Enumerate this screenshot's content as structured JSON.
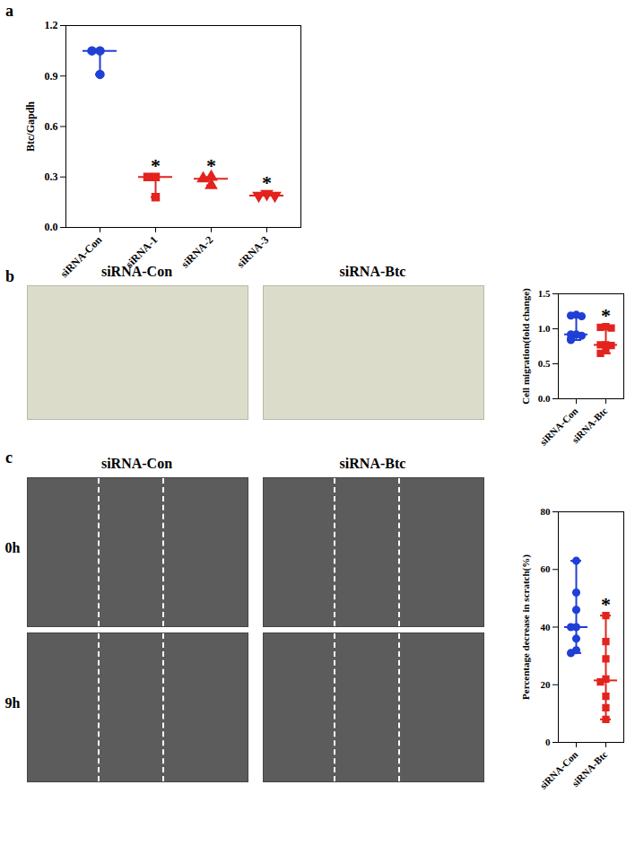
{
  "chart_data": [
    {
      "type": "scatter",
      "title": "a",
      "categories": [
        "siRNA-Con",
        "siRNA-1",
        "siRNA-2",
        "siRNA-3"
      ],
      "values": [
        [
          1.05,
          1.05,
          0.91
        ],
        [
          0.3,
          0.3,
          0.18
        ],
        [
          0.3,
          0.29,
          0.25
        ],
        [
          0.2,
          0.19,
          0.19
        ]
      ],
      "median": [
        1.05,
        0.3,
        0.29,
        0.19
      ],
      "range": [
        [
          0.91,
          1.05
        ],
        [
          0.18,
          0.3
        ],
        [
          0.25,
          0.3
        ],
        [
          0.19,
          0.2
        ]
      ],
      "significance": [
        null,
        "*",
        "*",
        "*"
      ],
      "colors": [
        "#1f3fd6",
        "#e3231d",
        "#e3231d",
        "#e3231d"
      ],
      "markers": [
        "circle",
        "square",
        "triangle",
        "triangle-down"
      ],
      "y_label": "Btc/Gapdh",
      "ylim": [
        0,
        1.2
      ],
      "yticks": [
        {
          "value": 0,
          "label": "0.0"
        },
        0.3,
        0.6,
        0.9,
        1.2
      ]
    },
    {
      "type": "scatter",
      "title": "b",
      "image_labels": {
        "columns": [
          "siRNA-Con",
          "siRNA-Btc"
        ]
      },
      "categories": [
        "siRNA-Con",
        "siRNA-Btc"
      ],
      "values": [
        [
          1.2,
          1.19,
          1.18,
          0.92,
          0.92,
          0.9,
          0.86,
          0.84
        ],
        [
          1.03,
          1.02,
          1.01,
          0.77,
          0.77,
          0.76,
          0.69,
          0.65
        ]
      ],
      "median": [
        0.92,
        0.77
      ],
      "range": [
        [
          0.84,
          1.2
        ],
        [
          0.65,
          1.03
        ]
      ],
      "significance": [
        null,
        "*"
      ],
      "colors": [
        "#1f3fd6",
        "#e3231d"
      ],
      "markers": [
        "circle",
        "square"
      ],
      "y_label": "Cell migration(fold change)",
      "ylim": [
        0,
        1.5
      ],
      "yticks": [
        {
          "value": 0,
          "label": "0.0"
        },
        0.5,
        {
          "value": 1,
          "label": "1.0"
        },
        1.5
      ]
    },
    {
      "type": "scatter",
      "title": "c",
      "image_labels": {
        "columns": [
          "siRNA-Con",
          "siRNA-Btc"
        ],
        "rows": [
          "0h",
          "9h"
        ]
      },
      "categories": [
        "siRNA-Con",
        "siRNA-Btc"
      ],
      "values": [
        [
          63,
          52,
          46,
          40,
          40,
          36,
          32,
          31
        ],
        [
          44,
          35,
          29,
          22,
          21,
          16,
          12,
          8
        ]
      ],
      "median": [
        40,
        21.5
      ],
      "range": [
        [
          31,
          63
        ],
        [
          8,
          44
        ]
      ],
      "significance": [
        null,
        "*"
      ],
      "colors": [
        "#1f3fd6",
        "#e3231d"
      ],
      "markers": [
        "circle",
        "square"
      ],
      "y_label": "Percentage decrease in scratch(%)",
      "ylim": [
        0,
        80
      ],
      "yticks": [
        0,
        20,
        40,
        60,
        80
      ]
    }
  ]
}
